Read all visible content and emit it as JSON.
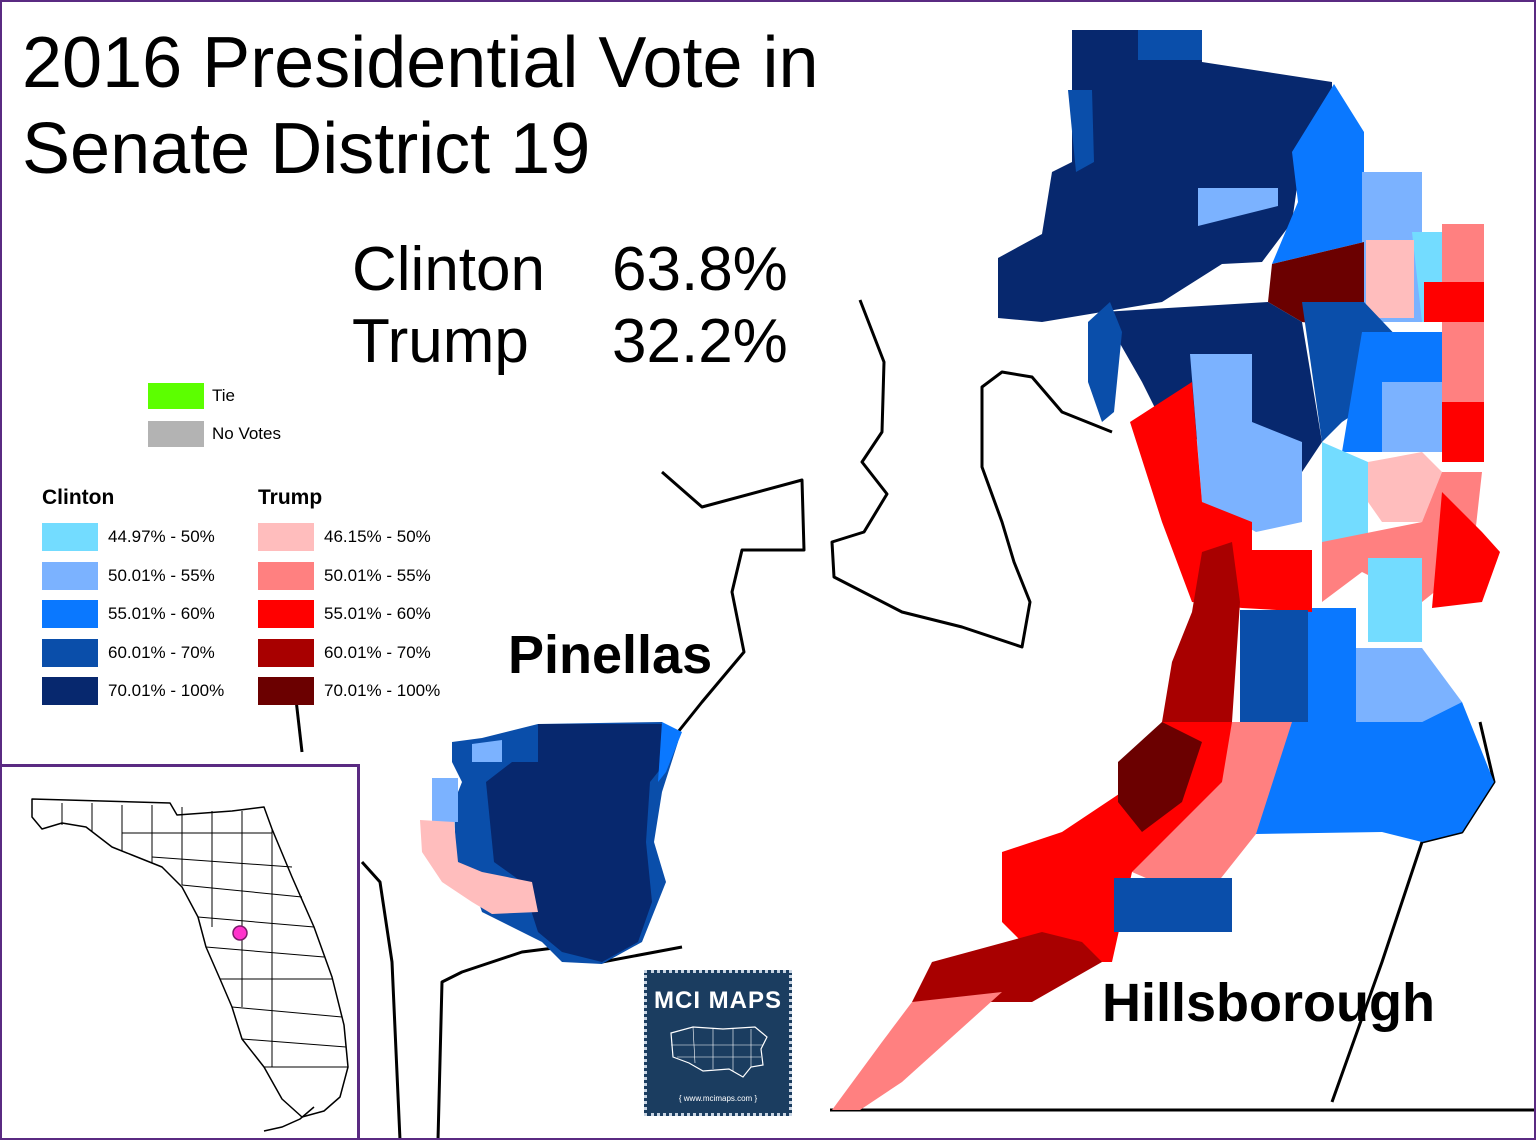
{
  "title_line1": "2016 Presidential Vote in",
  "title_line2": "Senate District 19",
  "results": [
    {
      "candidate": "Clinton",
      "percent": "63.8%"
    },
    {
      "candidate": "Trump",
      "percent": "32.2%"
    }
  ],
  "counties": {
    "west": "Pinellas",
    "east": "Hillsborough"
  },
  "legend_extra": [
    {
      "label": "Tie",
      "color": "#5cff00"
    },
    {
      "label": "No Votes",
      "color": "#b3b3b3"
    }
  ],
  "legend": {
    "clinton": {
      "heading": "Clinton",
      "items": [
        {
          "label": "44.97% - 50%",
          "color": "#73dcff"
        },
        {
          "label": "50.01% - 55%",
          "color": "#7bb2ff"
        },
        {
          "label": "55.01% - 60%",
          "color": "#0a78ff"
        },
        {
          "label": "60.01% - 70%",
          "color": "#0a4eaa"
        },
        {
          "label": "70.01% - 100%",
          "color": "#07286e"
        }
      ]
    },
    "trump": {
      "heading": "Trump",
      "items": [
        {
          "label": "46.15% - 50%",
          "color": "#ffbdbd"
        },
        {
          "label": "50.01% - 55%",
          "color": "#ff8080"
        },
        {
          "label": "55.01% - 60%",
          "color": "#ff0000"
        },
        {
          "label": "60.01% - 70%",
          "color": "#a80000"
        },
        {
          "label": "70.01% - 100%",
          "color": "#6b0000"
        }
      ]
    }
  },
  "logo": {
    "brand": "MCI MAPS",
    "url": "{ www.mcimaps.com }"
  },
  "colors": {
    "frame": "#5a2a82",
    "district_highlight": "#ff33cc"
  }
}
